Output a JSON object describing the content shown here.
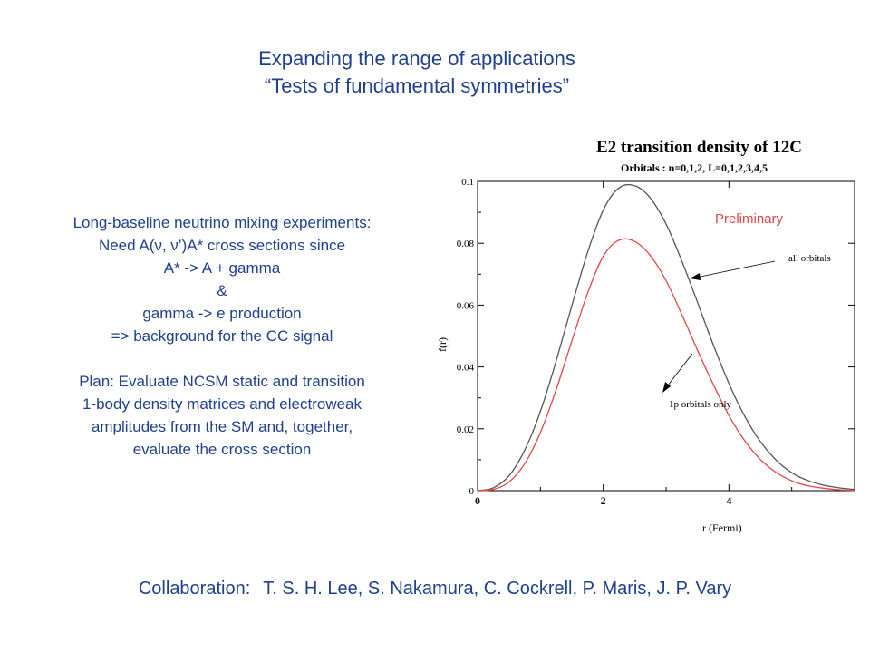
{
  "slide": {
    "title_line1": "Expanding the range of applications",
    "title_line2": "“Tests of fundamental symmetries”",
    "body_lines": [
      "Long-baseline neutrino mixing experiments:",
      "Need A(ν, ν’)A* cross sections since",
      "A* -> A + gamma",
      "&",
      "gamma -> e production",
      "=> background for the CC signal"
    ],
    "plan_lines": [
      "Plan:  Evaluate NCSM static and transition",
      "1-body density matrices and electroweak",
      "amplitudes from the SM and, together,",
      "evaluate the cross section"
    ],
    "collaboration_label": "Collaboration:",
    "collaboration_names": "T. S. H. Lee, S. Nakamura, C. Cockrell, P. Maris, J. P. Vary"
  },
  "chart_data": {
    "type": "line",
    "title": "E2 transition density of 12C",
    "subtitle": "Orbitals : n=0,1,2, L=0,1,2,3,4,5",
    "xlabel": "r (Fermi)",
    "ylabel": "f(r)",
    "xlim": [
      0,
      6
    ],
    "ylim": [
      0,
      0.1
    ],
    "x_ticks": [
      "0",
      "2",
      "4"
    ],
    "y_ticks": [
      "0",
      "0.02",
      "0.04",
      "0.06",
      "0.08",
      "0.1"
    ],
    "annotations": {
      "preliminary": "Preliminary",
      "all_orbitals": "all orbitals",
      "p_orbitals": "1p orbitals only"
    },
    "series": [
      {
        "label_key": "all_orbitals",
        "color": "#555555",
        "x": [
          0,
          0.25,
          0.5,
          0.75,
          1.0,
          1.25,
          1.5,
          1.75,
          2.0,
          2.25,
          2.5,
          2.75,
          3.0,
          3.25,
          3.5,
          3.75,
          4.0,
          4.25,
          4.5,
          4.75,
          5.0,
          5.25,
          5.5,
          5.75,
          6.0
        ],
        "y": [
          0,
          0.0009,
          0.0048,
          0.0131,
          0.0256,
          0.0419,
          0.0598,
          0.077,
          0.0907,
          0.0979,
          0.0986,
          0.0946,
          0.0862,
          0.0743,
          0.0609,
          0.0472,
          0.0347,
          0.0241,
          0.0159,
          0.0099,
          0.0058,
          0.0033,
          0.0018,
          0.0009,
          0.0004
        ]
      },
      {
        "label_key": "p_orbitals",
        "color": "#e8434a",
        "x": [
          0,
          0.25,
          0.5,
          0.75,
          1.0,
          1.25,
          1.5,
          1.75,
          2.0,
          2.25,
          2.5,
          2.75,
          3.0,
          3.25,
          3.5,
          3.75,
          4.0,
          4.25,
          4.5,
          4.75,
          5.0,
          5.25,
          5.5,
          5.75,
          6.0
        ],
        "y": [
          0,
          0.0004,
          0.0028,
          0.0087,
          0.0188,
          0.0326,
          0.0484,
          0.0638,
          0.0758,
          0.081,
          0.0806,
          0.076,
          0.0679,
          0.057,
          0.0454,
          0.0344,
          0.0243,
          0.0162,
          0.0101,
          0.0059,
          0.0032,
          0.0016,
          0.0008,
          0.0003,
          0.0001
        ]
      }
    ]
  }
}
